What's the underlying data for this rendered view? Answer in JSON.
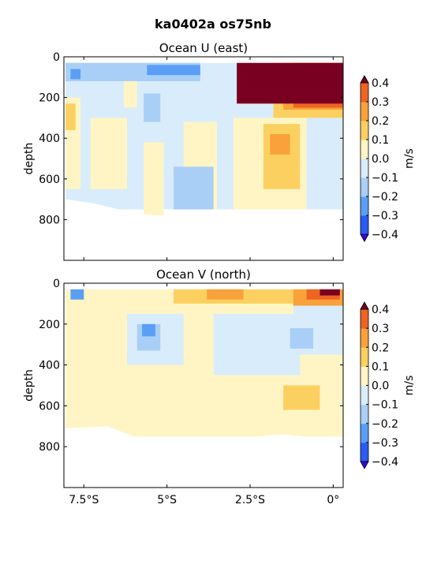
{
  "figure": {
    "suptitle": "ka0402a os75nb"
  },
  "chart_data": [
    {
      "type": "heatmap",
      "title": "Ocean U (east)",
      "ylabel": "depth",
      "xlabel": "",
      "xlim": [
        -8.1,
        0.3
      ],
      "ylim": [
        1000,
        0
      ],
      "yticks": [
        0,
        200,
        400,
        600,
        800
      ],
      "xticks": [
        -7.5,
        -5,
        -2.5,
        0
      ],
      "xtick_labels": [
        "7.5°S",
        "5°S",
        "2.5°S",
        "0°"
      ],
      "colorbar": {
        "label": "m/s",
        "levels": [
          -0.4,
          -0.3,
          -0.2,
          -0.1,
          0.0,
          0.1,
          0.2,
          0.3,
          0.4
        ],
        "tick_labels": [
          "−0.4",
          "−0.3",
          "−0.2",
          "−0.1",
          "0.0",
          "0.1",
          "0.2",
          "0.3",
          "0.4"
        ],
        "colors": [
          "#3a00e0",
          "#2a5bf2",
          "#5a9ef5",
          "#a9cff7",
          "#d9ecfb",
          "#fff5c4",
          "#fcd060",
          "#f9a13a",
          "#ee6423",
          "#c9261b",
          "#7a0022"
        ]
      },
      "features": [
        {
          "x0": -8.05,
          "x1": 0.3,
          "z0": 30,
          "z1": 750,
          "u": -0.05
        },
        {
          "x0": -8.05,
          "x1": -7.6,
          "z0": 200,
          "z1": 650,
          "u": 0.05
        },
        {
          "x0": -8.05,
          "x1": -7.75,
          "z0": 230,
          "z1": 360,
          "u": 0.15
        },
        {
          "x0": -7.3,
          "x1": -6.2,
          "z0": 300,
          "z1": 650,
          "u": 0.05
        },
        {
          "x0": -6.3,
          "x1": -5.9,
          "z0": 120,
          "z1": 250,
          "u": 0.05
        },
        {
          "x0": -5.7,
          "x1": -5.1,
          "z0": 420,
          "z1": 780,
          "u": 0.05
        },
        {
          "x0": -4.5,
          "x1": -3.5,
          "z0": 320,
          "z1": 750,
          "u": 0.05
        },
        {
          "x0": -3.0,
          "x1": -0.8,
          "z0": 300,
          "z1": 750,
          "u": 0.05
        },
        {
          "x0": -2.1,
          "x1": -1.0,
          "z0": 330,
          "z1": 650,
          "u": 0.15
        },
        {
          "x0": -1.9,
          "x1": -1.3,
          "z0": 380,
          "z1": 480,
          "u": 0.25
        },
        {
          "x0": -5.7,
          "x1": -5.2,
          "z0": 180,
          "z1": 320,
          "u": -0.15
        },
        {
          "x0": -4.8,
          "x1": -3.6,
          "z0": 540,
          "z1": 750,
          "u": -0.15
        },
        {
          "x0": -8.05,
          "x1": -4.0,
          "z0": 30,
          "z1": 120,
          "u": -0.15
        },
        {
          "x0": -7.9,
          "x1": -7.6,
          "z0": 60,
          "z1": 110,
          "u": -0.3
        },
        {
          "x0": -5.6,
          "x1": -4.0,
          "z0": 40,
          "z1": 90,
          "u": -0.3
        },
        {
          "x0": -1.8,
          "x1": 0.3,
          "z0": 30,
          "z1": 300,
          "u": 0.15
        },
        {
          "x0": -1.5,
          "x1": 0.3,
          "z0": 30,
          "z1": 260,
          "u": 0.25
        },
        {
          "x0": -1.2,
          "x1": 0.3,
          "z0": 30,
          "z1": 250,
          "u": 0.35
        },
        {
          "x0": -2.9,
          "x1": 0.3,
          "z0": 30,
          "z1": 230,
          "u": 0.45
        }
      ],
      "data_bottom": [
        {
          "x": -8.05,
          "z": 700
        },
        {
          "x": -7.2,
          "z": 720
        },
        {
          "x": -6.2,
          "z": 760
        },
        {
          "x": -5.0,
          "z": 790
        },
        {
          "x": -4.0,
          "z": 760
        },
        {
          "x": -3.0,
          "z": 750
        },
        {
          "x": -1.5,
          "z": 750
        },
        {
          "x": -0.3,
          "z": 760
        },
        {
          "x": 0.3,
          "z": 760
        }
      ]
    },
    {
      "type": "heatmap",
      "title": "Ocean V (north)",
      "ylabel": "depth",
      "xlabel": "",
      "xlim": [
        -8.1,
        0.3
      ],
      "ylim": [
        1000,
        0
      ],
      "yticks": [
        0,
        200,
        400,
        600,
        800
      ],
      "xticks": [
        -7.5,
        -5,
        -2.5,
        0
      ],
      "xtick_labels": [
        "7.5°S",
        "5°S",
        "2.5°S",
        "0°"
      ],
      "colorbar": {
        "label": "m/s",
        "levels": [
          -0.4,
          -0.3,
          -0.2,
          -0.1,
          0.0,
          0.1,
          0.2,
          0.3,
          0.4
        ],
        "tick_labels": [
          "−0.4",
          "−0.3",
          "−0.2",
          "−0.1",
          "0.0",
          "0.1",
          "0.2",
          "0.3",
          "0.4"
        ],
        "colors": [
          "#3a00e0",
          "#2a5bf2",
          "#5a9ef5",
          "#a9cff7",
          "#d9ecfb",
          "#fff5c4",
          "#fcd060",
          "#f9a13a",
          "#ee6423",
          "#c9261b",
          "#7a0022"
        ]
      },
      "features": [
        {
          "x0": -8.05,
          "x1": 0.3,
          "z0": 30,
          "z1": 750,
          "u": 0.05
        },
        {
          "x0": -6.2,
          "x1": -4.5,
          "z0": 150,
          "z1": 400,
          "u": -0.05
        },
        {
          "x0": -3.6,
          "x1": -1.0,
          "z0": 150,
          "z1": 450,
          "u": -0.05
        },
        {
          "x0": -1.2,
          "x1": 0.3,
          "z0": 100,
          "z1": 350,
          "u": -0.05
        },
        {
          "x0": -5.9,
          "x1": -5.2,
          "z0": 200,
          "z1": 330,
          "u": -0.15
        },
        {
          "x0": -5.75,
          "x1": -5.35,
          "z0": 200,
          "z1": 260,
          "u": -0.25
        },
        {
          "x0": -7.9,
          "x1": -7.5,
          "z0": 30,
          "z1": 80,
          "u": -0.25
        },
        {
          "x0": -1.3,
          "x1": -0.6,
          "z0": 220,
          "z1": 320,
          "u": -0.15
        },
        {
          "x0": -1.5,
          "x1": -0.4,
          "z0": 500,
          "z1": 620,
          "u": 0.15
        },
        {
          "x0": -4.8,
          "x1": -0.8,
          "z0": 30,
          "z1": 100,
          "u": 0.15
        },
        {
          "x0": -3.8,
          "x1": -2.7,
          "z0": 30,
          "z1": 80,
          "u": 0.25
        },
        {
          "x0": -1.2,
          "x1": 0.3,
          "z0": 30,
          "z1": 110,
          "u": 0.25
        },
        {
          "x0": -0.8,
          "x1": 0.2,
          "z0": 30,
          "z1": 80,
          "u": 0.35
        },
        {
          "x0": -0.4,
          "x1": 0.2,
          "z0": 30,
          "z1": 60,
          "u": 0.45
        }
      ],
      "data_bottom": [
        {
          "x": -8.05,
          "z": 710
        },
        {
          "x": -6.8,
          "z": 700
        },
        {
          "x": -6.0,
          "z": 750
        },
        {
          "x": -5.0,
          "z": 790
        },
        {
          "x": -4.0,
          "z": 770
        },
        {
          "x": -3.0,
          "z": 760
        },
        {
          "x": -1.5,
          "z": 740
        },
        {
          "x": -0.3,
          "z": 760
        },
        {
          "x": 0.3,
          "z": 760
        }
      ]
    }
  ]
}
